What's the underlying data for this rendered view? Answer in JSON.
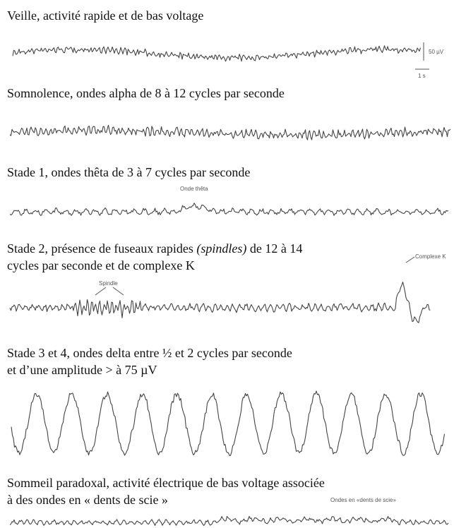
{
  "sections": [
    {
      "title_lines": [
        "Veille, activité rapide et de bas voltage"
      ],
      "annotations": [
        "50 µV",
        "1 s"
      ]
    },
    {
      "title_lines": [
        "Somnolence, ondes alpha de 8 à 12 cycles par seconde"
      ]
    },
    {
      "title_lines": [
        "Stade 1, ondes thêta de 3 à 7 cycles par seconde"
      ],
      "annotations": [
        "Onde thêta"
      ]
    },
    {
      "title_lines": [
        [
          "Stade 2, présence de fuseaux rapides ",
          "(spindles)",
          " de 12 à 14"
        ],
        "cycles par seconde et de complexe K"
      ],
      "annotations": [
        "Spindle",
        "Complexe K"
      ]
    },
    {
      "title_lines": [
        "Stade 3 et 4, ondes delta entre ½ et 2 cycles par seconde",
        "et d’une amplitude > à 75 µV"
      ]
    },
    {
      "title_lines": [
        "Sommeil paradoxal, activité électrique de bas voltage associée",
        "à des ondes en « dents de scie »"
      ],
      "annotations": [
        "Ondes en «dents de scie»"
      ]
    }
  ]
}
